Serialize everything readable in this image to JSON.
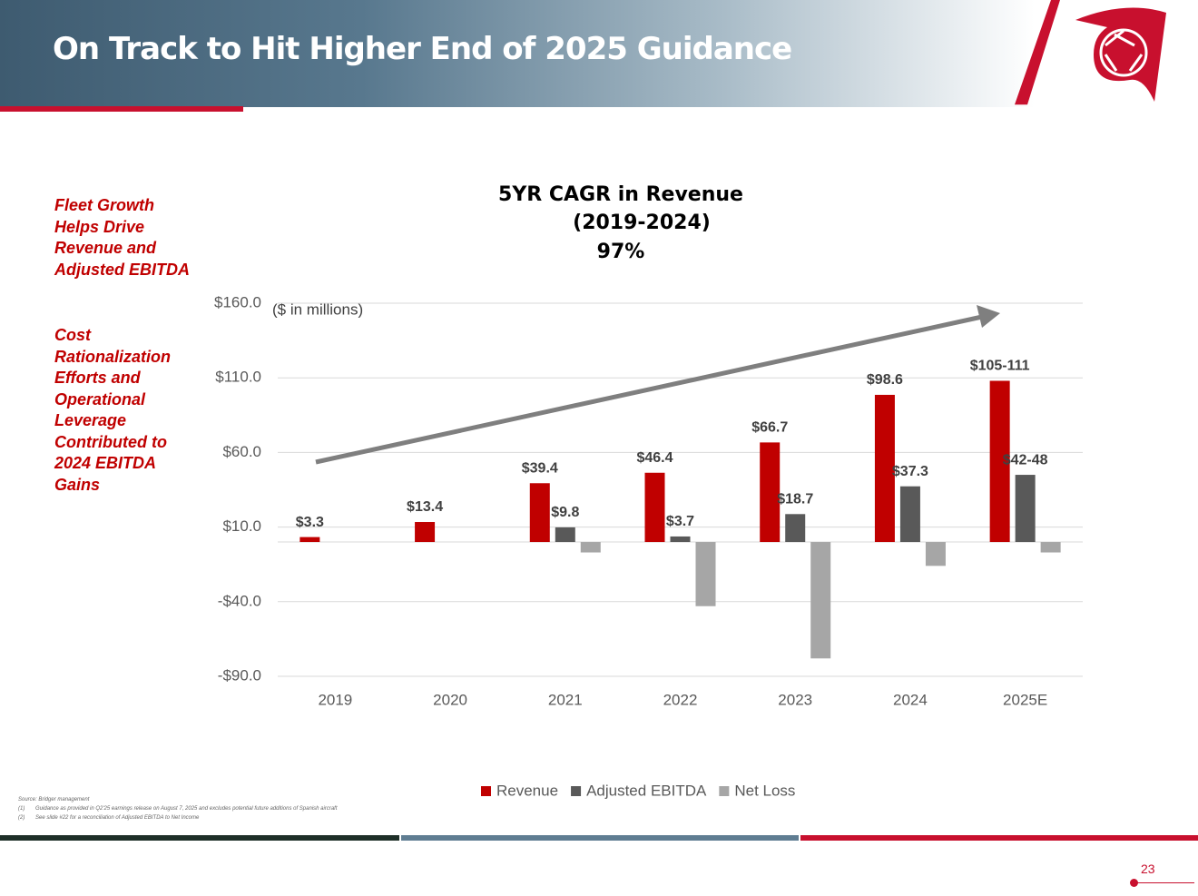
{
  "header": {
    "title": "On Track to Hit Higher End of 2025 Guidance"
  },
  "sidebar": [
    "Fleet Growth Helps Drive Revenue and Adjusted EBITDA",
    "Cost Rationalization Efforts and Operational Leverage Contributed to 2024 EBITDA Gains"
  ],
  "chart_data": {
    "type": "bar",
    "annotations": [
      "5YR CAGR in Revenue",
      "(2019-2024)",
      "97%",
      "($ in millions)"
    ],
    "categories": [
      "2019",
      "2020",
      "2021",
      "2022",
      "2023",
      "2024",
      "2025E"
    ],
    "series": [
      {
        "name": "Revenue",
        "color": "#c00000",
        "values": [
          3.3,
          13.4,
          39.4,
          46.4,
          66.7,
          98.6,
          108
        ],
        "value_labels": [
          "$3.3",
          "$13.4",
          "$39.4",
          "$46.4",
          "$66.7",
          "$98.6",
          "$105-111"
        ]
      },
      {
        "name": "Adjusted EBITDA",
        "color": "#595959",
        "values": [
          null,
          null,
          9.8,
          3.7,
          18.7,
          37.3,
          45
        ],
        "value_labels": [
          null,
          null,
          "$9.8",
          "$3.7",
          "$18.7",
          "$37.3",
          "$42-48"
        ]
      },
      {
        "name": "Net Loss",
        "color": "#a6a6a6",
        "values": [
          null,
          null,
          -7,
          -43,
          -78,
          -16,
          -7
        ]
      }
    ],
    "ylim": [
      -90,
      160
    ],
    "yticks": [
      {
        "value": -90,
        "label": "-$90.0"
      },
      {
        "value": -40,
        "label": "-$40.0"
      },
      {
        "value": 10,
        "label": "$10.0"
      },
      {
        "value": 60,
        "label": "$60.0"
      },
      {
        "value": 110,
        "label": "$110.0"
      },
      {
        "value": 160,
        "label": "$160.0"
      }
    ],
    "grid": true
  },
  "footnotes": [
    "Source: Bridger management",
    "(1)",
    "Guidance as provided in Q2'25 earnings release on August 7, 2025 and excludes potential future additions of Spanish aircraft",
    "(2)",
    "See slide #22 for a reconciliation of Adjusted EBITDA to Net Income"
  ],
  "page_number": "23"
}
